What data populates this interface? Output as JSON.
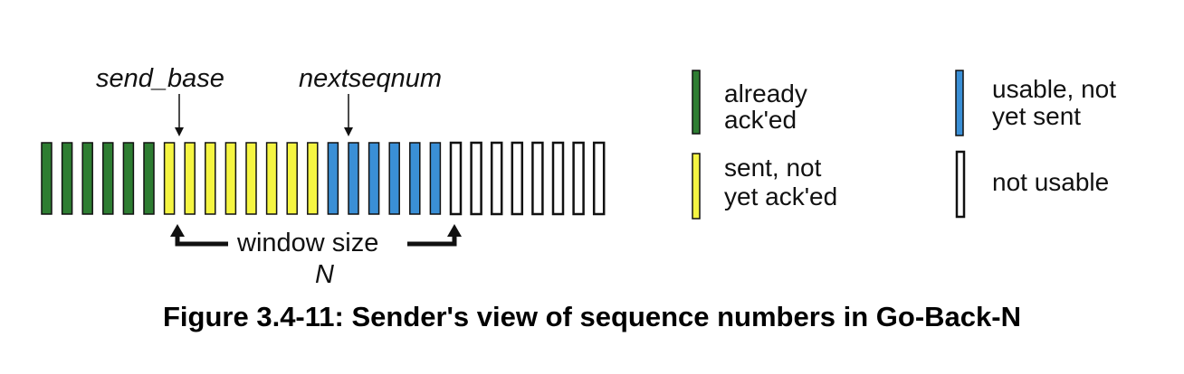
{
  "diagram": {
    "labels": {
      "send_base": "send_base",
      "nextseqnum": "nextseqnum",
      "window_size": "window size",
      "window_n": "N"
    },
    "sequence": [
      "already_acked",
      "already_acked",
      "already_acked",
      "already_acked",
      "already_acked",
      "already_acked",
      "sent_not_acked",
      "sent_not_acked",
      "sent_not_acked",
      "sent_not_acked",
      "sent_not_acked",
      "sent_not_acked",
      "sent_not_acked",
      "sent_not_acked",
      "usable_not_sent",
      "usable_not_sent",
      "usable_not_sent",
      "usable_not_sent",
      "usable_not_sent",
      "usable_not_sent",
      "not_usable",
      "not_usable",
      "not_usable",
      "not_usable",
      "not_usable",
      "not_usable",
      "not_usable",
      "not_usable"
    ],
    "legend": [
      {
        "key": "already_acked",
        "lines": [
          "already",
          "ack'ed"
        ]
      },
      {
        "key": "sent_not_acked",
        "lines": [
          "sent, not",
          "yet ack'ed"
        ]
      },
      {
        "key": "usable_not_sent",
        "lines": [
          "usable, not",
          "yet sent"
        ]
      },
      {
        "key": "not_usable",
        "lines": [
          "not usable"
        ]
      }
    ],
    "colors": {
      "already_acked": "#2e7d32",
      "sent_not_acked": "#f5f542",
      "usable_not_sent": "#3a8fd6",
      "not_usable": "#ffffff",
      "outline": "#111111"
    }
  },
  "caption": "Figure 3.4-11: Sender's view of sequence numbers in Go-Back-N"
}
